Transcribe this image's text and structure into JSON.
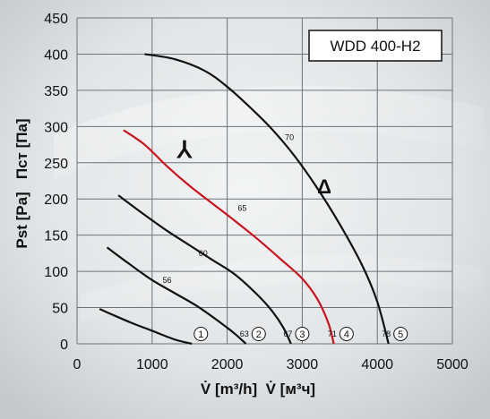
{
  "chart_data": {
    "type": "line",
    "title": "WDD 400-H2",
    "xlabel": "V̇ [m³/h]  V̇ [м³ч]",
    "ylabel": "Pst [Pa]   Пст [Па]",
    "xlim": [
      0,
      5000
    ],
    "ylim": [
      0,
      450
    ],
    "x_ticks": [
      "0",
      "1000",
      "2000",
      "3000",
      "4000",
      "5000"
    ],
    "y_ticks": [
      "0",
      "50",
      "100",
      "150",
      "200",
      "250",
      "300",
      "350",
      "400",
      "450"
    ],
    "grid": true,
    "connection_symbols": {
      "star": "⅄",
      "delta": "Δ"
    },
    "series": [
      {
        "name": "1",
        "color": "#111111",
        "points": [
          [
            300,
            48
          ],
          [
            700,
            30
          ],
          [
            1000,
            18
          ],
          [
            1300,
            6
          ],
          [
            1530,
            0
          ]
        ],
        "label_value": "",
        "marker_x": 1650
      },
      {
        "name": "2",
        "color": "#111111",
        "points": [
          [
            400,
            133
          ],
          [
            700,
            110
          ],
          [
            1000,
            88
          ],
          [
            1300,
            70
          ],
          [
            1600,
            52
          ],
          [
            1900,
            30
          ],
          [
            2100,
            14
          ],
          [
            2250,
            0
          ]
        ],
        "label_value": "56",
        "label_at": [
          1200,
          88
        ],
        "end_label": "63",
        "marker_x": 2420
      },
      {
        "name": "3",
        "color": "#111111",
        "points": [
          [
            550,
            205
          ],
          [
            900,
            178
          ],
          [
            1200,
            156
          ],
          [
            1500,
            136
          ],
          [
            1800,
            116
          ],
          [
            2100,
            96
          ],
          [
            2400,
            68
          ],
          [
            2600,
            45
          ],
          [
            2750,
            22
          ],
          [
            2850,
            0
          ]
        ],
        "label_value": "60",
        "label_at": [
          1680,
          125
        ],
        "end_label": "67",
        "marker_x": 3000
      },
      {
        "name": "4",
        "color": "#c8141e",
        "points": [
          [
            620,
            295
          ],
          [
            900,
            275
          ],
          [
            1200,
            245
          ],
          [
            1500,
            218
          ],
          [
            1800,
            194
          ],
          [
            2100,
            170
          ],
          [
            2400,
            145
          ],
          [
            2700,
            118
          ],
          [
            3000,
            90
          ],
          [
            3200,
            62
          ],
          [
            3350,
            28
          ],
          [
            3420,
            0
          ]
        ],
        "label_value": "65",
        "label_at": [
          2200,
          187
        ],
        "end_label": "71",
        "marker_x": 3590
      },
      {
        "name": "5",
        "color": "#111111",
        "points": [
          [
            900,
            400
          ],
          [
            1300,
            393
          ],
          [
            1700,
            377
          ],
          [
            2000,
            355
          ],
          [
            2300,
            327
          ],
          [
            2600,
            296
          ],
          [
            2900,
            259
          ],
          [
            3200,
            215
          ],
          [
            3500,
            165
          ],
          [
            3800,
            108
          ],
          [
            4000,
            58
          ],
          [
            4150,
            0
          ]
        ],
        "label_value": "70",
        "label_at": [
          2830,
          285
        ],
        "end_label": "78",
        "marker_x": 4310
      }
    ]
  }
}
